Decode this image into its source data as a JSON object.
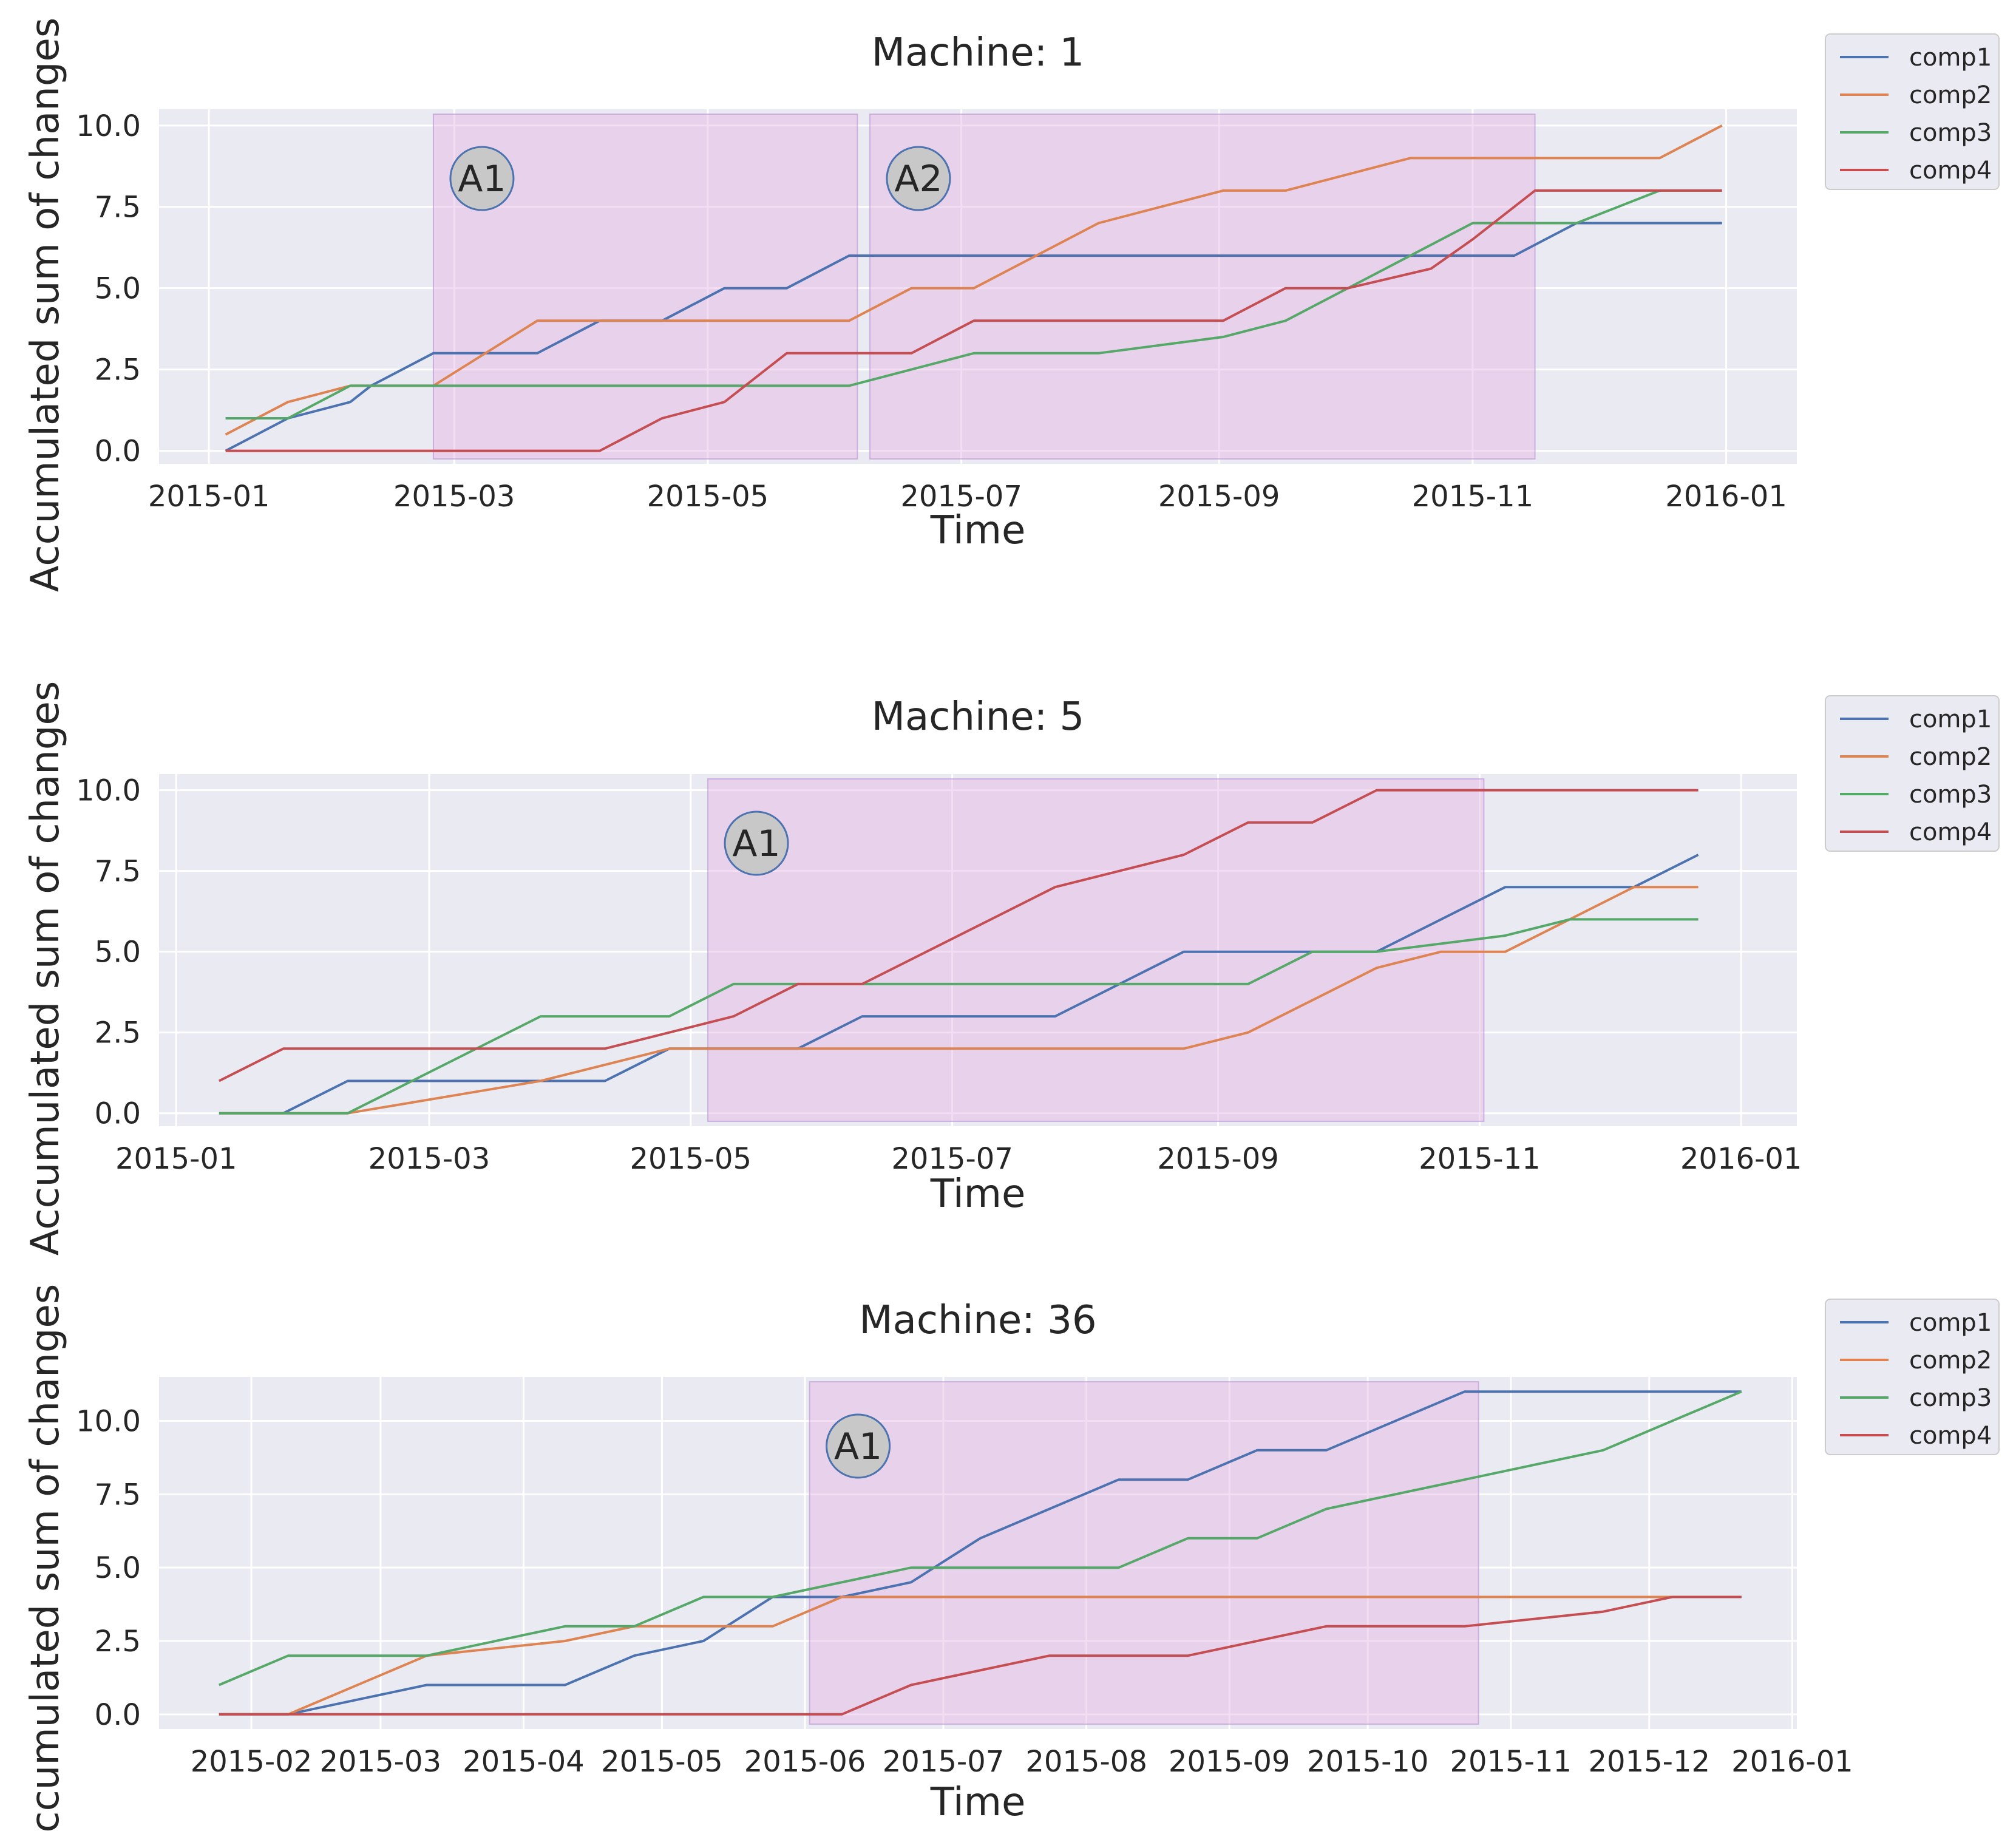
{
  "chart_data": [
    {
      "type": "line",
      "title": "Machine: 1",
      "xlabel": "Time",
      "ylabel": "Accumulated sum of changes",
      "xlim": [
        "2014-12-20",
        "2016-01-18"
      ],
      "ylim": [
        -0.4,
        10.5
      ],
      "x_ticks": [
        "2015-01",
        "2015-03",
        "2015-05",
        "2015-07",
        "2015-09",
        "2015-11",
        "2016-01"
      ],
      "y_ticks": [
        "0.0",
        "2.5",
        "5.0",
        "7.5",
        "10.0"
      ],
      "legend": [
        "comp1",
        "comp2",
        "comp3",
        "comp4"
      ],
      "legend_position": "outside-top-right",
      "anomaly_regions": [
        {
          "label": "A1",
          "start": "2015-02-24",
          "end": "2015-06-06"
        },
        {
          "label": "A2",
          "start": "2015-06-09",
          "end": "2015-11-16"
        }
      ],
      "series": [
        {
          "name": "comp1",
          "points": [
            [
              "2015-01-05",
              0
            ],
            [
              "2015-01-20",
              1
            ],
            [
              "2015-02-04",
              1.5
            ],
            [
              "2015-02-09",
              2
            ],
            [
              "2015-02-24",
              3
            ],
            [
              "2015-03-21",
              3
            ],
            [
              "2015-04-05",
              4
            ],
            [
              "2015-04-20",
              4
            ],
            [
              "2015-05-05",
              5
            ],
            [
              "2015-05-20",
              5
            ],
            [
              "2015-06-04",
              6
            ],
            [
              "2015-11-11",
              6
            ],
            [
              "2015-11-26",
              7
            ],
            [
              "2015-12-31",
              7
            ]
          ]
        },
        {
          "name": "comp2",
          "points": [
            [
              "2015-01-05",
              0.5
            ],
            [
              "2015-01-20",
              1.5
            ],
            [
              "2015-02-04",
              2
            ],
            [
              "2015-02-24",
              2
            ],
            [
              "2015-03-21",
              4
            ],
            [
              "2015-06-04",
              4
            ],
            [
              "2015-06-19",
              5
            ],
            [
              "2015-07-04",
              5
            ],
            [
              "2015-08-03",
              7
            ],
            [
              "2015-09-02",
              8
            ],
            [
              "2015-09-17",
              8
            ],
            [
              "2015-10-17",
              9
            ],
            [
              "2015-12-16",
              9
            ],
            [
              "2015-12-31",
              10
            ]
          ]
        },
        {
          "name": "comp3",
          "points": [
            [
              "2015-01-05",
              1
            ],
            [
              "2015-01-20",
              1
            ],
            [
              "2015-02-04",
              2
            ],
            [
              "2015-06-04",
              2
            ],
            [
              "2015-07-04",
              3
            ],
            [
              "2015-08-03",
              3
            ],
            [
              "2015-09-02",
              3.5
            ],
            [
              "2015-09-17",
              4
            ],
            [
              "2015-11-01",
              7
            ],
            [
              "2015-11-26",
              7
            ],
            [
              "2015-12-16",
              8
            ],
            [
              "2015-12-31",
              8
            ]
          ]
        },
        {
          "name": "comp4",
          "points": [
            [
              "2015-01-05",
              0
            ],
            [
              "2015-04-05",
              0
            ],
            [
              "2015-04-20",
              1
            ],
            [
              "2015-05-05",
              1.5
            ],
            [
              "2015-05-20",
              3
            ],
            [
              "2015-06-19",
              3
            ],
            [
              "2015-07-04",
              4
            ],
            [
              "2015-09-02",
              4
            ],
            [
              "2015-09-17",
              5
            ],
            [
              "2015-10-02",
              5
            ],
            [
              "2015-10-22",
              5.6
            ],
            [
              "2015-11-01",
              6.5
            ],
            [
              "2015-11-16",
              8
            ],
            [
              "2015-12-31",
              8
            ]
          ]
        }
      ]
    },
    {
      "type": "line",
      "title": "Machine: 5",
      "xlabel": "Time",
      "ylabel": "Accumulated sum of changes",
      "xlim": [
        "2014-12-28",
        "2016-01-14"
      ],
      "ylim": [
        -0.4,
        10.5
      ],
      "x_ticks": [
        "2015-01",
        "2015-03",
        "2015-05",
        "2015-07",
        "2015-09",
        "2015-11",
        "2016-01"
      ],
      "y_ticks": [
        "0.0",
        "2.5",
        "5.0",
        "7.5",
        "10.0"
      ],
      "legend": [
        "comp1",
        "comp2",
        "comp3",
        "comp4"
      ],
      "legend_position": "outside-top-right",
      "anomaly_regions": [
        {
          "label": "A1",
          "start": "2015-05-05",
          "end": "2015-11-02"
        }
      ],
      "series": [
        {
          "name": "comp1",
          "points": [
            [
              "2015-01-11",
              0
            ],
            [
              "2015-01-26",
              0
            ],
            [
              "2015-02-10",
              1
            ],
            [
              "2015-04-11",
              1
            ],
            [
              "2015-04-26",
              2
            ],
            [
              "2015-05-26",
              2
            ],
            [
              "2015-06-10",
              3
            ],
            [
              "2015-07-25",
              3
            ],
            [
              "2015-08-24",
              5
            ],
            [
              "2015-09-23",
              5
            ],
            [
              "2015-10-08",
              5
            ],
            [
              "2015-11-07",
              7
            ],
            [
              "2015-12-07",
              7
            ],
            [
              "2015-12-22",
              8
            ]
          ]
        },
        {
          "name": "comp2",
          "points": [
            [
              "2015-01-11",
              0
            ],
            [
              "2015-02-10",
              0
            ],
            [
              "2015-03-27",
              1
            ],
            [
              "2015-04-26",
              2
            ],
            [
              "2015-08-24",
              2
            ],
            [
              "2015-09-08",
              2.5
            ],
            [
              "2015-10-08",
              4.5
            ],
            [
              "2015-10-23",
              5
            ],
            [
              "2015-11-07",
              5
            ],
            [
              "2015-12-07",
              7
            ],
            [
              "2015-12-22",
              7
            ]
          ]
        },
        {
          "name": "comp3",
          "points": [
            [
              "2015-01-11",
              0
            ],
            [
              "2015-02-10",
              0
            ],
            [
              "2015-03-27",
              3
            ],
            [
              "2015-04-26",
              3
            ],
            [
              "2015-05-11",
              4
            ],
            [
              "2015-09-08",
              4
            ],
            [
              "2015-09-23",
              5
            ],
            [
              "2015-10-08",
              5
            ],
            [
              "2015-11-07",
              5.5
            ],
            [
              "2015-11-22",
              6
            ],
            [
              "2015-12-22",
              6
            ]
          ]
        },
        {
          "name": "comp4",
          "points": [
            [
              "2015-01-11",
              1
            ],
            [
              "2015-01-26",
              2
            ],
            [
              "2015-04-11",
              2
            ],
            [
              "2015-05-11",
              3
            ],
            [
              "2015-05-26",
              4
            ],
            [
              "2015-06-10",
              4
            ],
            [
              "2015-07-25",
              7
            ],
            [
              "2015-08-24",
              8
            ],
            [
              "2015-09-08",
              9
            ],
            [
              "2015-09-23",
              9
            ],
            [
              "2015-10-08",
              10
            ],
            [
              "2015-12-22",
              10
            ]
          ]
        }
      ]
    },
    {
      "type": "line",
      "title": "Machine: 36",
      "xlabel": "Time",
      "ylabel": "Accumulated sum of changes",
      "xlim": [
        "2015-01-12",
        "2016-01-02"
      ],
      "ylim": [
        -0.5,
        11.5
      ],
      "x_ticks": [
        "2015-02",
        "2015-03",
        "2015-04",
        "2015-05",
        "2015-06",
        "2015-07",
        "2015-08",
        "2015-09",
        "2015-10",
        "2015-11",
        "2015-12",
        "2016-01"
      ],
      "y_ticks": [
        "0.0",
        "2.5",
        "5.0",
        "7.5",
        "10.0"
      ],
      "legend": [
        "comp1",
        "comp2",
        "comp3",
        "comp4"
      ],
      "legend_position": "outside-top-right",
      "anomaly_regions": [
        {
          "label": "A1",
          "start": "2015-06-02",
          "end": "2015-10-25"
        }
      ],
      "series": [
        {
          "name": "comp1",
          "points": [
            [
              "2015-01-25",
              0
            ],
            [
              "2015-02-09",
              0
            ],
            [
              "2015-03-11",
              1
            ],
            [
              "2015-04-10",
              1
            ],
            [
              "2015-04-25",
              2
            ],
            [
              "2015-05-10",
              2.5
            ],
            [
              "2015-05-25",
              4
            ],
            [
              "2015-06-09",
              4
            ],
            [
              "2015-06-24",
              4.5
            ],
            [
              "2015-07-09",
              6
            ],
            [
              "2015-08-08",
              8
            ],
            [
              "2015-08-23",
              8
            ],
            [
              "2015-09-07",
              9
            ],
            [
              "2015-09-22",
              9
            ],
            [
              "2015-10-22",
              11
            ],
            [
              "2015-12-21",
              11
            ]
          ]
        },
        {
          "name": "comp2",
          "points": [
            [
              "2015-01-25",
              0
            ],
            [
              "2015-02-09",
              0
            ],
            [
              "2015-03-11",
              2
            ],
            [
              "2015-04-10",
              2.5
            ],
            [
              "2015-04-25",
              3
            ],
            [
              "2015-05-25",
              3
            ],
            [
              "2015-06-09",
              4
            ],
            [
              "2015-12-21",
              4
            ]
          ]
        },
        {
          "name": "comp3",
          "points": [
            [
              "2015-01-25",
              1
            ],
            [
              "2015-02-09",
              2
            ],
            [
              "2015-03-11",
              2
            ],
            [
              "2015-04-10",
              3
            ],
            [
              "2015-04-25",
              3
            ],
            [
              "2015-05-10",
              4
            ],
            [
              "2015-05-25",
              4
            ],
            [
              "2015-06-24",
              5
            ],
            [
              "2015-08-08",
              5
            ],
            [
              "2015-08-23",
              6
            ],
            [
              "2015-09-07",
              6
            ],
            [
              "2015-09-22",
              7
            ],
            [
              "2015-11-21",
              9
            ],
            [
              "2015-12-21",
              11
            ]
          ]
        },
        {
          "name": "comp4",
          "points": [
            [
              "2015-01-25",
              0
            ],
            [
              "2015-06-09",
              0
            ],
            [
              "2015-06-24",
              1
            ],
            [
              "2015-07-24",
              2
            ],
            [
              "2015-08-23",
              2
            ],
            [
              "2015-09-22",
              3
            ],
            [
              "2015-10-22",
              3
            ],
            [
              "2015-11-21",
              3.5
            ],
            [
              "2015-12-06",
              4
            ],
            [
              "2015-12-21",
              4
            ]
          ]
        }
      ]
    }
  ],
  "colors": {
    "comp1": "#4c72b0",
    "comp2": "#dd8452",
    "comp3": "#55a868",
    "comp4": "#c44e52",
    "axes_bg": "#eaeaf2",
    "grid": "#ffffff",
    "anomaly_fill": "#e4b4e2",
    "anomaly_stroke": "#b98fd6",
    "annotation_fill": "#c8c8c8",
    "annotation_stroke": "#4c72b0"
  }
}
